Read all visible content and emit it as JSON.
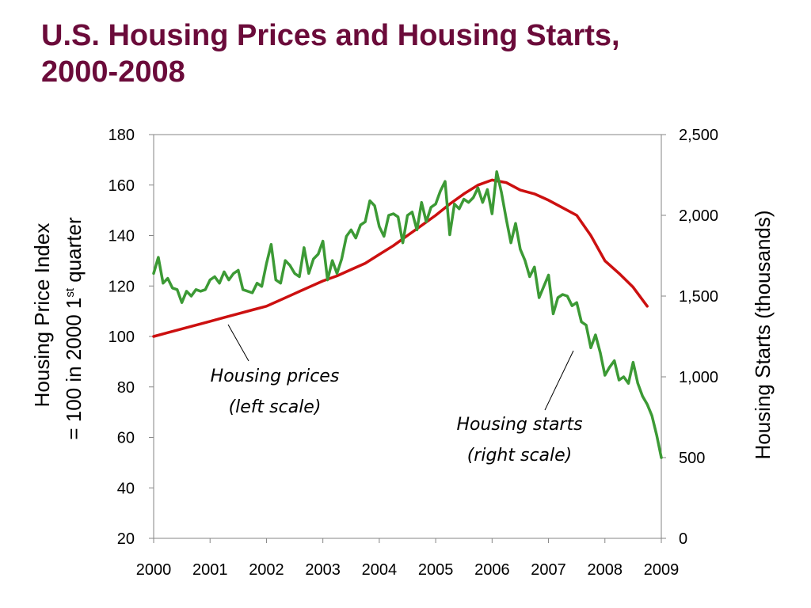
{
  "title_line1": "U.S. Housing Prices and Housing Starts,",
  "title_line2": "2000-2008",
  "chart_data": {
    "type": "line",
    "title": "U.S. Housing Prices and Housing Starts, 2000-2008",
    "xlabel": "",
    "x_ticks": [
      "2000",
      "2001",
      "2002",
      "2003",
      "2004",
      "2005",
      "2006",
      "2007",
      "2008",
      "2009"
    ],
    "xlim": [
      2000,
      2009
    ],
    "ylabel_left": {
      "line1": "Housing Price Index",
      "line2_prefix": "= 100 in 2000 1",
      "line2_sup": "st",
      "line2_suffix": " quarter"
    },
    "ylim_left": [
      20,
      180
    ],
    "yticks_left": [
      "20",
      "40",
      "60",
      "80",
      "100",
      "120",
      "140",
      "160",
      "180"
    ],
    "ylabel_right": "Housing Starts (thousands)",
    "ylim_right": [
      0,
      2500
    ],
    "yticks_right": [
      "0",
      "500",
      "1,000",
      "1,500",
      "2,000",
      "2,500"
    ],
    "colors": {
      "prices": "#cc1010",
      "starts": "#3c9a35",
      "title": "#6b0b3a"
    },
    "series": [
      {
        "axis": "left",
        "points": [
          [
            2000.0,
            100
          ],
          [
            2000.25,
            101.5
          ],
          [
            2000.5,
            103
          ],
          [
            2000.75,
            104.5
          ],
          [
            2001.0,
            106
          ],
          [
            2001.25,
            107.5
          ],
          [
            2001.5,
            109
          ],
          [
            2001.75,
            110.5
          ],
          [
            2002.0,
            112
          ],
          [
            2002.25,
            114.5
          ],
          [
            2002.5,
            117
          ],
          [
            2002.75,
            119.5
          ],
          [
            2003.0,
            122
          ],
          [
            2003.25,
            124
          ],
          [
            2003.5,
            126.5
          ],
          [
            2003.75,
            129
          ],
          [
            2004.0,
            132.5
          ],
          [
            2004.25,
            136
          ],
          [
            2004.5,
            140
          ],
          [
            2004.75,
            144
          ],
          [
            2005.0,
            148
          ],
          [
            2005.25,
            152.5
          ],
          [
            2005.5,
            156.5
          ],
          [
            2005.75,
            160
          ],
          [
            2006.0,
            162
          ],
          [
            2006.25,
            161
          ],
          [
            2006.5,
            158
          ],
          [
            2006.75,
            156.5
          ],
          [
            2007.0,
            154
          ],
          [
            2007.25,
            151
          ],
          [
            2007.5,
            148
          ],
          [
            2007.75,
            140
          ],
          [
            2008.0,
            130
          ],
          [
            2008.25,
            125
          ],
          [
            2008.5,
            119.5
          ],
          [
            2008.75,
            112
          ]
        ]
      },
      {
        "axis": "right",
        "points": [
          [
            2000.0,
            1640
          ],
          [
            2000.083,
            1740
          ],
          [
            2000.167,
            1580
          ],
          [
            2000.25,
            1610
          ],
          [
            2000.333,
            1550
          ],
          [
            2000.417,
            1540
          ],
          [
            2000.5,
            1460
          ],
          [
            2000.583,
            1530
          ],
          [
            2000.667,
            1500
          ],
          [
            2000.75,
            1540
          ],
          [
            2000.833,
            1530
          ],
          [
            2000.917,
            1540
          ],
          [
            2001.0,
            1600
          ],
          [
            2001.083,
            1620
          ],
          [
            2001.167,
            1580
          ],
          [
            2001.25,
            1650
          ],
          [
            2001.333,
            1600
          ],
          [
            2001.417,
            1640
          ],
          [
            2001.5,
            1660
          ],
          [
            2001.583,
            1540
          ],
          [
            2001.667,
            1530
          ],
          [
            2001.75,
            1520
          ],
          [
            2001.833,
            1580
          ],
          [
            2001.917,
            1560
          ],
          [
            2002.0,
            1700
          ],
          [
            2002.083,
            1820
          ],
          [
            2002.167,
            1600
          ],
          [
            2002.25,
            1580
          ],
          [
            2002.333,
            1720
          ],
          [
            2002.417,
            1690
          ],
          [
            2002.5,
            1640
          ],
          [
            2002.583,
            1620
          ],
          [
            2002.667,
            1800
          ],
          [
            2002.75,
            1640
          ],
          [
            2002.833,
            1730
          ],
          [
            2002.917,
            1760
          ],
          [
            2003.0,
            1840
          ],
          [
            2003.083,
            1600
          ],
          [
            2003.167,
            1720
          ],
          [
            2003.25,
            1640
          ],
          [
            2003.333,
            1730
          ],
          [
            2003.417,
            1870
          ],
          [
            2003.5,
            1910
          ],
          [
            2003.583,
            1860
          ],
          [
            2003.667,
            1940
          ],
          [
            2003.75,
            1960
          ],
          [
            2003.833,
            2090
          ],
          [
            2003.917,
            2060
          ],
          [
            2004.0,
            1930
          ],
          [
            2004.083,
            1870
          ],
          [
            2004.167,
            2000
          ],
          [
            2004.25,
            2010
          ],
          [
            2004.333,
            1990
          ],
          [
            2004.417,
            1830
          ],
          [
            2004.5,
            2000
          ],
          [
            2004.583,
            2020
          ],
          [
            2004.667,
            1910
          ],
          [
            2004.75,
            2080
          ],
          [
            2004.833,
            1960
          ],
          [
            2004.917,
            2050
          ],
          [
            2005.0,
            2070
          ],
          [
            2005.083,
            2150
          ],
          [
            2005.167,
            2210
          ],
          [
            2005.25,
            1880
          ],
          [
            2005.333,
            2070
          ],
          [
            2005.417,
            2040
          ],
          [
            2005.5,
            2100
          ],
          [
            2005.583,
            2080
          ],
          [
            2005.667,
            2110
          ],
          [
            2005.75,
            2170
          ],
          [
            2005.833,
            2080
          ],
          [
            2005.917,
            2160
          ],
          [
            2006.0,
            2010
          ],
          [
            2006.083,
            2270
          ],
          [
            2006.167,
            2140
          ],
          [
            2006.25,
            1980
          ],
          [
            2006.333,
            1830
          ],
          [
            2006.417,
            1950
          ],
          [
            2006.5,
            1790
          ],
          [
            2006.583,
            1720
          ],
          [
            2006.667,
            1620
          ],
          [
            2006.75,
            1680
          ],
          [
            2006.833,
            1490
          ],
          [
            2006.917,
            1560
          ],
          [
            2007.0,
            1630
          ],
          [
            2007.083,
            1390
          ],
          [
            2007.167,
            1490
          ],
          [
            2007.25,
            1510
          ],
          [
            2007.333,
            1500
          ],
          [
            2007.417,
            1440
          ],
          [
            2007.5,
            1460
          ],
          [
            2007.583,
            1340
          ],
          [
            2007.667,
            1320
          ],
          [
            2007.75,
            1180
          ],
          [
            2007.833,
            1260
          ],
          [
            2007.917,
            1150
          ],
          [
            2008.0,
            1010
          ],
          [
            2008.083,
            1060
          ],
          [
            2008.167,
            1100
          ],
          [
            2008.25,
            980
          ],
          [
            2008.333,
            1000
          ],
          [
            2008.417,
            960
          ],
          [
            2008.5,
            1090
          ],
          [
            2008.583,
            960
          ],
          [
            2008.667,
            880
          ],
          [
            2008.75,
            830
          ],
          [
            2008.833,
            760
          ],
          [
            2008.917,
            640
          ],
          [
            2009.0,
            500
          ]
        ]
      }
    ],
    "annotations": [
      {
        "id": "prices",
        "line1": "Housing prices",
        "line2": "(left scale)"
      },
      {
        "id": "starts",
        "line1": "Housing starts",
        "line2": "(right scale)"
      }
    ]
  }
}
